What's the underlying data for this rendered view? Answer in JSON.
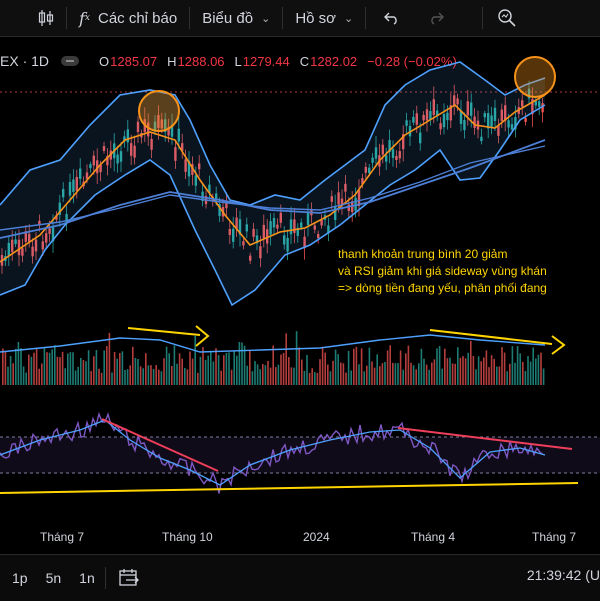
{
  "toolbar": {
    "indicators_label": "Các chỉ báo",
    "chart_label": "Biểu đồ",
    "profile_label": "Hồ sơ"
  },
  "legend": {
    "symbol": "EX · 1D",
    "open_label": "O",
    "open": "1285.07",
    "high_label": "H",
    "high": "1288.06",
    "low_label": "L",
    "low": "1279.44",
    "close_label": "C",
    "close": "1282.02",
    "change": "−0.28 (−0.02%)"
  },
  "annotation": {
    "line1": "thanh khoản trung bình 20 giảm",
    "line2": "và RSI giảm khi giá sideway vùng khán",
    "line3": "=> dòng tiền đang yếu, phân phối đang"
  },
  "xaxis": {
    "labels": [
      "Tháng 7",
      "Tháng 10",
      "2024",
      "Tháng 4",
      "Tháng 7"
    ]
  },
  "bottombar": {
    "btn_1d": "1p",
    "btn_5d": "5n",
    "btn_1m": "1n",
    "clock": "21:39:42 (U"
  },
  "colors": {
    "up": "#26a69a",
    "down": "#ef5350",
    "bb": "#4ea1ff",
    "ma": "#f7931a",
    "annot": "#ffd500",
    "rsi": "#7e57c2"
  }
}
